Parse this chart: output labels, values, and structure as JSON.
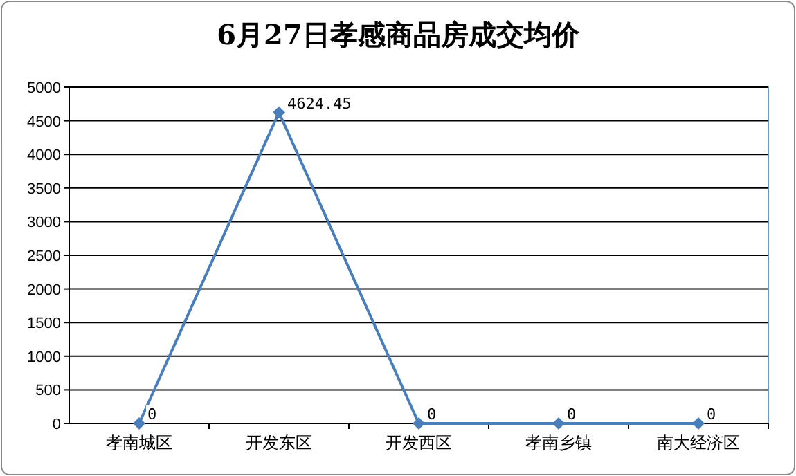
{
  "chart_data": {
    "type": "line",
    "title": "6月27日孝感商品房成交均价",
    "categories": [
      "孝南城区",
      "开发东区",
      "开发西区",
      "孝南乡镇",
      "南大经济区"
    ],
    "series": [
      {
        "color": "#4a7ebb",
        "values": [
          0,
          4624.45,
          0,
          0,
          0
        ]
      }
    ],
    "ylim": [
      0,
      5000
    ],
    "yticks": [
      0,
      500,
      1000,
      1500,
      2000,
      2500,
      3000,
      3500,
      4000,
      4500,
      5000
    ],
    "grid": "y",
    "marker": "diamond",
    "line_style": "solid",
    "data_labels": true
  }
}
